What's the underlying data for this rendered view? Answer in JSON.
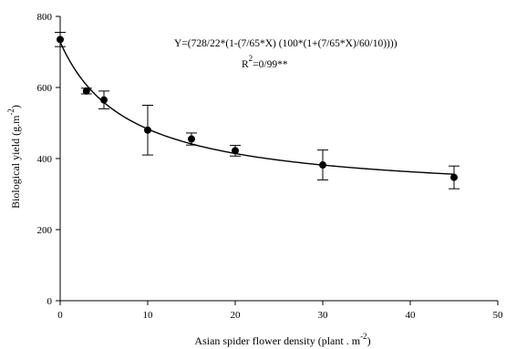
{
  "chart_data": {
    "type": "scatter",
    "x": [
      0,
      3,
      5,
      10,
      15,
      20,
      30,
      45
    ],
    "y": [
      735,
      590,
      565,
      480,
      455,
      422,
      382,
      347
    ],
    "error": [
      20,
      8,
      25,
      70,
      17,
      15,
      42,
      32
    ],
    "xlim": [
      0,
      50
    ],
    "ylim": [
      0,
      800
    ],
    "xticks": [
      0,
      10,
      20,
      30,
      40,
      50
    ],
    "yticks": [
      0,
      200,
      400,
      600,
      800
    ],
    "xlabel": "Asian spider flower density (plant . m",
    "xlabel_sup": "-2",
    "xlabel_tail": ")",
    "ylabel": "Biological yield (g.m",
    "ylabel_sup": "-2",
    "ylabel_tail": ")",
    "equation": "Y=(728/22*(1-(7/65*X) (100*(1+(7/65*X)/60/10))))",
    "r2_label": "R",
    "r2_sup": "2",
    "r2_value": "=0/99**",
    "fit": {
      "Y0": 728,
      "I": 7.65,
      "A": 60
    },
    "grid": false,
    "legend": false
  }
}
